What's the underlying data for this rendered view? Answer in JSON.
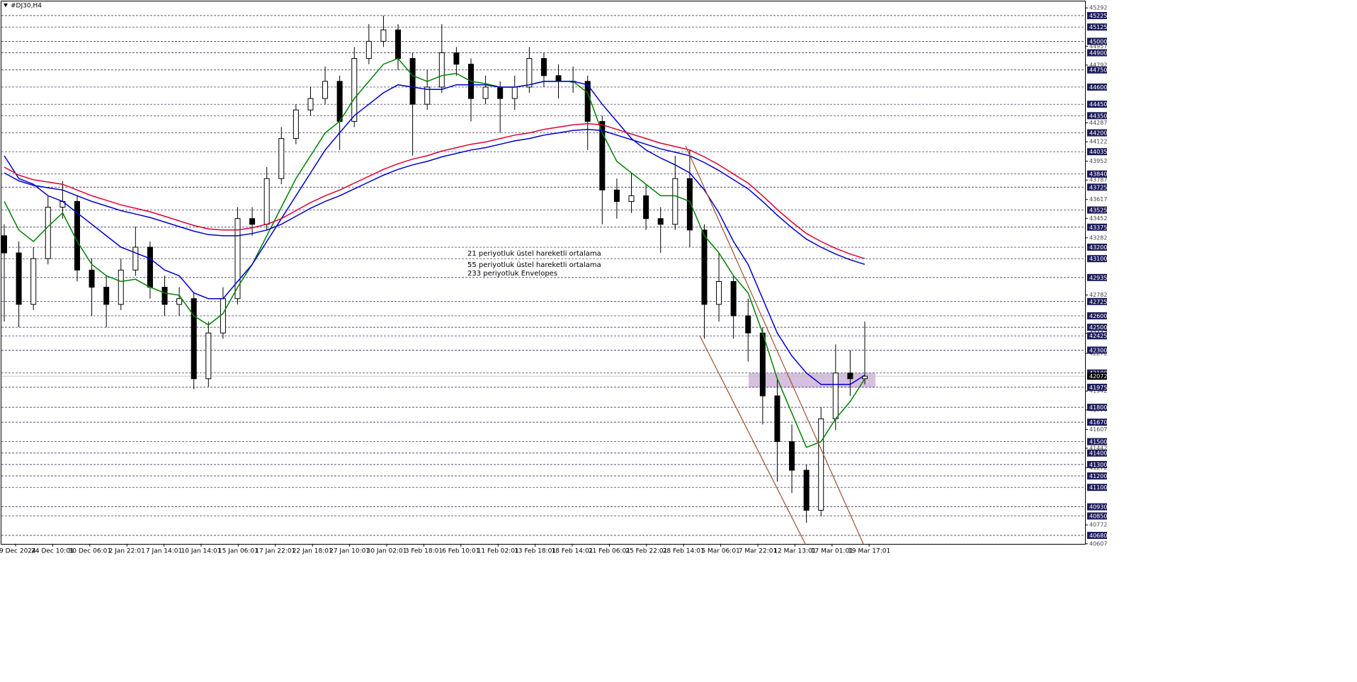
{
  "chart_data": {
    "type": "candlestick",
    "title": "#DJ30,H4",
    "ylim": [
      40607,
      45292
    ],
    "yticks": [
      45292,
      44957,
      44792,
      44287,
      44122,
      43952,
      43787,
      43617,
      43452,
      43282,
      42782,
      42447,
      42272,
      41942,
      41777,
      41607,
      41442,
      41272,
      40772,
      40607
    ],
    "levels": [
      45225,
      45125,
      45000,
      44900,
      44750,
      44600,
      44450,
      44350,
      44200,
      44035,
      43840,
      43725,
      43525,
      43375,
      43200,
      43100,
      42935,
      42725,
      42600,
      42500,
      42425,
      42300,
      42100,
      41975,
      41800,
      41670,
      41500,
      41400,
      41300,
      41200,
      41100,
      40930,
      40850,
      40680
    ],
    "level_color": "#1c1c5a",
    "current_price": 42072,
    "zone": [
      41975,
      42100
    ],
    "zone_color": "#d3b8dc",
    "x_labels": [
      "19 Dec 2024",
      "24 Dec 10:01",
      "30 Dec 06:01",
      "2 Jan 22:01",
      "7 Jan 14:01",
      "10 Jan 14:01",
      "15 Jan 06:01",
      "17 Jan 22:01",
      "22 Jan 18:01",
      "27 Jan 10:01",
      "30 Jan 02:01",
      "3 Feb 18:01",
      "6 Feb 10:01",
      "11 Feb 02:01",
      "13 Feb 18:01",
      "18 Feb 14:01",
      "21 Feb 06:01",
      "25 Feb 22:01",
      "28 Feb 14:01",
      "5 Mar 06:01",
      "7 Mar 22:01",
      "12 Mar 13:01",
      "17 Mar 01:01",
      "19 Mar 17:01"
    ],
    "candles": {
      "open": [
        43300,
        43150,
        42700,
        43100,
        43550,
        43600,
        43000,
        42850,
        42700,
        43000,
        43200,
        42850,
        42700,
        42750,
        42050,
        42450,
        42750,
        43450,
        43400,
        43800,
        44150,
        44400,
        44500,
        44650,
        44300,
        44850,
        45000,
        45100,
        44850,
        44450,
        44600,
        44900,
        44800,
        44500,
        44600,
        44500,
        44600,
        44850,
        44700,
        44650,
        44650,
        44300,
        43700,
        43600,
        43650,
        43450,
        43400,
        43800,
        43350,
        42700,
        42900,
        42600,
        42450,
        41900,
        41500,
        41250,
        40900,
        41700,
        42100,
        42050
      ],
      "high": [
        43400,
        43250,
        43200,
        43650,
        43780,
        43650,
        43100,
        42950,
        43100,
        43380,
        43250,
        42950,
        42850,
        42800,
        42550,
        42850,
        43550,
        43550,
        43900,
        44250,
        44450,
        44600,
        44780,
        44700,
        44950,
        45150,
        45225,
        45150,
        44900,
        44750,
        45150,
        44950,
        44850,
        44700,
        44650,
        44700,
        44950,
        44900,
        44800,
        44780,
        44700,
        44350,
        43800,
        43850,
        43750,
        43550,
        44000,
        44050,
        43400,
        43150,
        42950,
        42750,
        42500,
        42050,
        41650,
        41300,
        41800,
        42350,
        42300,
        42550
      ],
      "low": [
        42550,
        42500,
        42650,
        43050,
        43450,
        42900,
        42600,
        42500,
        42650,
        42950,
        42750,
        42600,
        42600,
        41960,
        41980,
        42400,
        42700,
        43300,
        43350,
        43750,
        44100,
        44350,
        44450,
        44050,
        44250,
        44800,
        44950,
        44750,
        44000,
        44400,
        44550,
        44700,
        44300,
        44450,
        44200,
        44400,
        44550,
        44600,
        44500,
        44550,
        44050,
        43400,
        43450,
        43500,
        43350,
        43150,
        43350,
        43200,
        42400,
        42550,
        42400,
        42200,
        41650,
        41150,
        41050,
        40790,
        40850,
        41600,
        41900,
        42000
      ],
      "close": [
        43150,
        42700,
        43100,
        43550,
        43600,
        43000,
        42850,
        42700,
        43000,
        43200,
        42850,
        42700,
        42750,
        42050,
        42450,
        42750,
        43450,
        43400,
        43800,
        44150,
        44400,
        44500,
        44650,
        44300,
        44850,
        45000,
        45100,
        44850,
        44450,
        44600,
        44900,
        44800,
        44500,
        44600,
        44500,
        44600,
        44850,
        44700,
        44650,
        44650,
        44300,
        43700,
        43600,
        43650,
        43450,
        43400,
        43800,
        43350,
        42700,
        42900,
        42600,
        42450,
        41900,
        41500,
        41250,
        40900,
        41700,
        42100,
        42050,
        42072
      ]
    },
    "series": [
      {
        "name": "21 periyotluk üstel hareketli ortalama",
        "color": "#008000",
        "values": [
          43600,
          43350,
          43250,
          43380,
          43500,
          43250,
          43050,
          42950,
          42900,
          42920,
          42850,
          42800,
          42780,
          42600,
          42520,
          42620,
          42850,
          43050,
          43300,
          43550,
          43800,
          44000,
          44200,
          44300,
          44500,
          44650,
          44800,
          44850,
          44700,
          44650,
          44700,
          44720,
          44650,
          44630,
          44600,
          44600,
          44620,
          44650,
          44650,
          44650,
          44550,
          44200,
          43950,
          43850,
          43750,
          43650,
          43650,
          43600,
          43300,
          43150,
          42950,
          42800,
          42450,
          42050,
          41750,
          41450,
          41500,
          41700,
          41850,
          42050
        ]
      },
      {
        "name": "55 periyotluk üstel hareketli ortalama",
        "color": "#0000cc",
        "values": [
          44000,
          43800,
          43750,
          43650,
          43600,
          43500,
          43400,
          43300,
          43200,
          43150,
          43100,
          43000,
          42950,
          42800,
          42750,
          42750,
          42900,
          43050,
          43250,
          43450,
          43650,
          43850,
          44050,
          44200,
          44350,
          44450,
          44550,
          44620,
          44600,
          44580,
          44580,
          44620,
          44620,
          44620,
          44600,
          44600,
          44620,
          44650,
          44650,
          44650,
          44620,
          44450,
          44300,
          44150,
          44050,
          43980,
          43920,
          43850,
          43700,
          43500,
          43250,
          43050,
          42750,
          42450,
          42250,
          42100,
          42000,
          42000,
          42000,
          42080
        ]
      },
      {
        "name": "233 periyotluk Envelopes",
        "color": "#e00030",
        "lower_color": "#0000cc",
        "values": [
          43900,
          43830,
          43790,
          43770,
          43750,
          43700,
          43650,
          43610,
          43570,
          43540,
          43510,
          43470,
          43430,
          43390,
          43360,
          43350,
          43350,
          43370,
          43400,
          43450,
          43520,
          43590,
          43650,
          43700,
          43760,
          43820,
          43880,
          43930,
          43970,
          44000,
          44040,
          44070,
          44100,
          44120,
          44150,
          44180,
          44200,
          44230,
          44250,
          44270,
          44280,
          44270,
          44230,
          44190,
          44150,
          44110,
          44080,
          44050,
          43990,
          43920,
          43840,
          43760,
          43650,
          43530,
          43420,
          43320,
          43250,
          43190,
          43140,
          43100
        ],
        "lower": [
          43850,
          43780,
          43740,
          43720,
          43700,
          43650,
          43600,
          43560,
          43520,
          43490,
          43460,
          43420,
          43380,
          43340,
          43310,
          43300,
          43300,
          43320,
          43350,
          43400,
          43470,
          43540,
          43600,
          43650,
          43710,
          43770,
          43830,
          43880,
          43920,
          43950,
          43990,
          44020,
          44050,
          44070,
          44100,
          44130,
          44150,
          44180,
          44200,
          44220,
          44230,
          44220,
          44180,
          44140,
          44100,
          44060,
          44030,
          44000,
          43940,
          43870,
          43790,
          43710,
          43600,
          43480,
          43370,
          43270,
          43200,
          43140,
          43090,
          43050
        ]
      }
    ]
  }
}
